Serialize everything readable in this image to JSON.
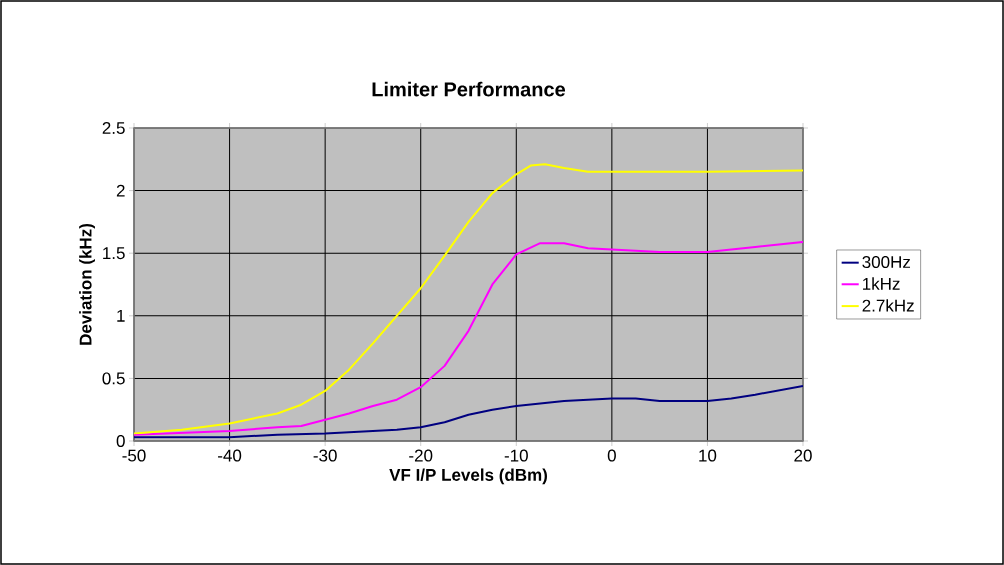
{
  "chart_data": {
    "type": "line",
    "title": "Limiter Performance",
    "xlabel": "VF I/P Levels (dBm)",
    "ylabel": "Deviation (kHz)",
    "xlim": [
      -50,
      20
    ],
    "xticks": [
      -50,
      -40,
      -30,
      -20,
      -10,
      0,
      10,
      20
    ],
    "ylim": [
      0,
      2.5
    ],
    "yticks": [
      0,
      0.5,
      1,
      1.5,
      2,
      2.5
    ],
    "grid": true,
    "legend": "right",
    "marker": "none",
    "line_style": "solid",
    "series": [
      {
        "name": "300Hz",
        "color": "#000080",
        "x": [
          -50,
          -40,
          -35,
          -30,
          -25,
          -22.5,
          -20,
          -17.5,
          -15,
          -12.5,
          -10,
          -5,
          0,
          2.5,
          5,
          10,
          12.5,
          15,
          20
        ],
        "values": [
          0.03,
          0.03,
          0.05,
          0.06,
          0.08,
          0.09,
          0.11,
          0.15,
          0.21,
          0.25,
          0.28,
          0.32,
          0.34,
          0.34,
          0.32,
          0.32,
          0.34,
          0.37,
          0.44
        ]
      },
      {
        "name": "1kHz",
        "color": "#ff00ff",
        "x": [
          -50,
          -40,
          -35,
          -32.5,
          -30,
          -27.5,
          -25,
          -22.5,
          -20,
          -17.5,
          -15,
          -12.5,
          -10,
          -7.5,
          -5,
          -2.5,
          0,
          5,
          10,
          12.5,
          15,
          20
        ],
        "values": [
          0.05,
          0.08,
          0.11,
          0.12,
          0.17,
          0.22,
          0.28,
          0.33,
          0.43,
          0.6,
          0.88,
          1.25,
          1.49,
          1.58,
          1.58,
          1.54,
          1.53,
          1.51,
          1.51,
          1.53,
          1.55,
          1.59
        ]
      },
      {
        "name": "2.7kHz",
        "color": "#ffff00",
        "x": [
          -50,
          -45,
          -40,
          -37.5,
          -35,
          -32.5,
          -30,
          -27.5,
          -25,
          -22.5,
          -20,
          -17.5,
          -15,
          -12.5,
          -10,
          -8.5,
          -7,
          -5,
          -2.5,
          0,
          10,
          20
        ],
        "values": [
          0.06,
          0.09,
          0.14,
          0.18,
          0.22,
          0.29,
          0.4,
          0.57,
          0.78,
          1.0,
          1.22,
          1.48,
          1.75,
          1.98,
          2.13,
          2.2,
          2.21,
          2.18,
          2.15,
          2.15,
          2.15,
          2.16
        ]
      }
    ]
  }
}
